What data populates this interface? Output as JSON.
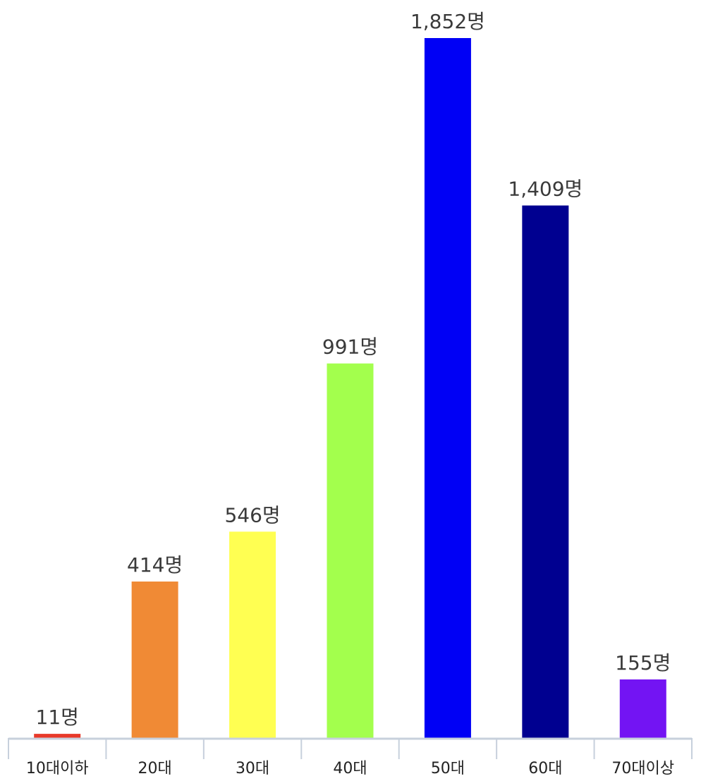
{
  "chart_data": {
    "type": "bar",
    "categories": [
      "10대이하",
      "20대",
      "30대",
      "40대",
      "50대",
      "60대",
      "70대이상"
    ],
    "values": [
      11,
      414,
      546,
      991,
      1852,
      1409,
      155
    ],
    "value_labels": [
      "11명",
      "414명",
      "546명",
      "991명",
      "1,852명",
      "1,409명",
      "155명"
    ],
    "colors": [
      "#e8392a",
      "#f08a35",
      "#ffff52",
      "#a3ff4d",
      "#0000f5",
      "#000090",
      "#7314f3"
    ],
    "axis_color": "#c7d0dc",
    "label_color": "#3a3a3a",
    "ylim": [
      0,
      1852
    ],
    "grid": false,
    "legend": "none",
    "title": "",
    "xlabel": "",
    "ylabel": ""
  }
}
